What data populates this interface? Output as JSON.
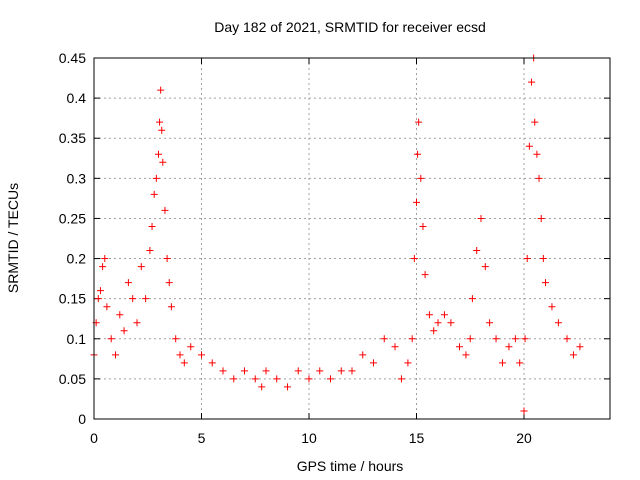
{
  "chart_data": {
    "type": "scatter",
    "title": "Day 182 of 2021, SRMTID for receiver ecsd",
    "xlabel": "GPS time / hours",
    "ylabel": "SRMTID / TECUs",
    "xlim": [
      0,
      24
    ],
    "ylim": [
      0,
      0.45
    ],
    "xticks": [
      0,
      5,
      10,
      15,
      20
    ],
    "xtick_labels": [
      "0",
      "5",
      "10",
      "15",
      "20"
    ],
    "yticks": [
      0,
      0.05,
      0.1,
      0.15,
      0.2,
      0.25,
      0.3,
      0.35,
      0.4,
      0.45
    ],
    "ytick_labels": [
      "0",
      "0.05",
      "0.1",
      "0.15",
      "0.2",
      "0.25",
      "0.3",
      "0.35",
      "0.4",
      "0.45"
    ],
    "grid": true,
    "marker": "+",
    "color": "#ff0000",
    "series": [
      {
        "name": "SRMTID",
        "x": [
          0.0,
          0.1,
          0.2,
          0.3,
          0.4,
          0.5,
          0.6,
          0.8,
          1.0,
          1.2,
          1.4,
          1.6,
          1.8,
          2.0,
          2.2,
          2.4,
          2.6,
          2.7,
          2.8,
          2.9,
          3.0,
          3.05,
          3.1,
          3.15,
          3.2,
          3.3,
          3.4,
          3.5,
          3.6,
          3.8,
          4.0,
          4.2,
          4.5,
          5.0,
          5.5,
          6.0,
          6.5,
          7.0,
          7.5,
          7.8,
          8.0,
          8.5,
          9.0,
          9.5,
          10.0,
          10.5,
          11.0,
          11.5,
          12.0,
          12.5,
          13.0,
          13.5,
          14.0,
          14.3,
          14.6,
          14.8,
          14.9,
          15.0,
          15.05,
          15.1,
          15.2,
          15.3,
          15.4,
          15.6,
          15.8,
          16.0,
          16.3,
          16.6,
          17.0,
          17.3,
          17.5,
          17.6,
          17.8,
          18.0,
          18.2,
          18.4,
          18.7,
          19.0,
          19.3,
          19.6,
          19.8,
          20.0,
          20.05,
          20.15,
          20.25,
          20.35,
          20.45,
          20.5,
          20.6,
          20.7,
          20.8,
          20.9,
          21.0,
          21.3,
          21.6,
          22.0,
          22.3,
          22.6
        ],
        "y": [
          0.08,
          0.12,
          0.15,
          0.16,
          0.19,
          0.2,
          0.14,
          0.1,
          0.08,
          0.13,
          0.11,
          0.17,
          0.15,
          0.12,
          0.19,
          0.15,
          0.21,
          0.24,
          0.28,
          0.3,
          0.33,
          0.37,
          0.41,
          0.36,
          0.32,
          0.26,
          0.2,
          0.17,
          0.14,
          0.1,
          0.08,
          0.07,
          0.09,
          0.08,
          0.07,
          0.06,
          0.05,
          0.06,
          0.05,
          0.04,
          0.06,
          0.05,
          0.04,
          0.06,
          0.05,
          0.06,
          0.05,
          0.06,
          0.06,
          0.08,
          0.07,
          0.1,
          0.09,
          0.05,
          0.07,
          0.1,
          0.2,
          0.27,
          0.33,
          0.37,
          0.3,
          0.24,
          0.18,
          0.13,
          0.11,
          0.12,
          0.13,
          0.12,
          0.09,
          0.08,
          0.1,
          0.15,
          0.21,
          0.25,
          0.19,
          0.12,
          0.1,
          0.07,
          0.09,
          0.1,
          0.07,
          0.01,
          0.1,
          0.2,
          0.34,
          0.42,
          0.45,
          0.37,
          0.33,
          0.3,
          0.25,
          0.2,
          0.17,
          0.14,
          0.12,
          0.1,
          0.08,
          0.09
        ]
      }
    ]
  }
}
